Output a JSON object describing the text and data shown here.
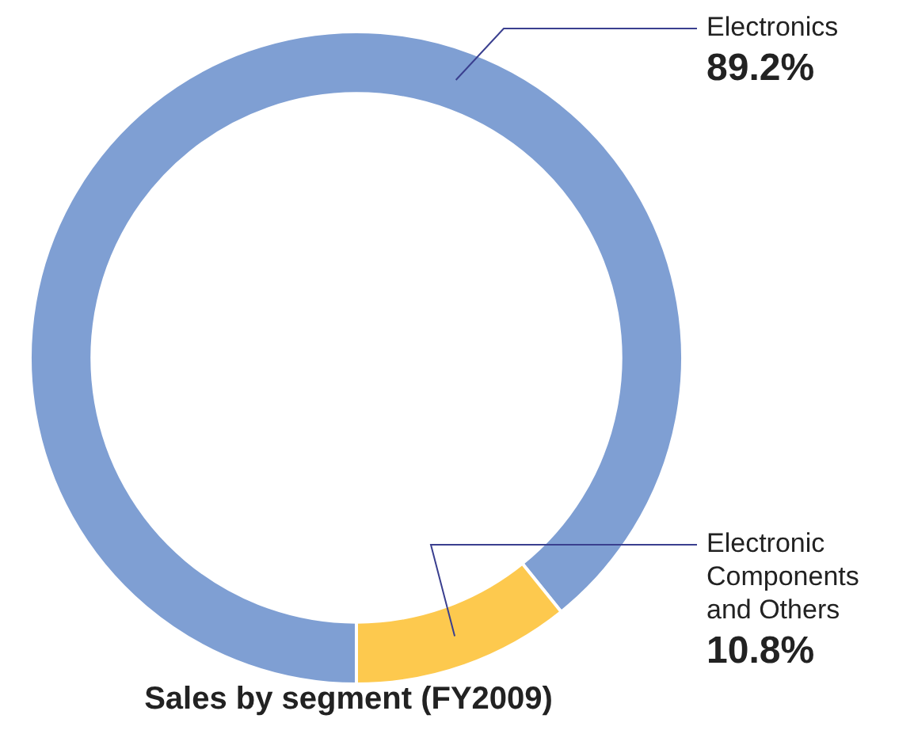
{
  "chart_data": {
    "type": "donut",
    "title": "Sales by segment (FY2009)",
    "categories": [
      "Electronics",
      "Electronic Components and Others"
    ],
    "values": [
      89.2,
      10.8
    ],
    "colors": [
      "#7f9fd3",
      "#fdc94e"
    ],
    "value_labels": [
      "89.2%",
      "10.8%"
    ],
    "legend": false
  }
}
